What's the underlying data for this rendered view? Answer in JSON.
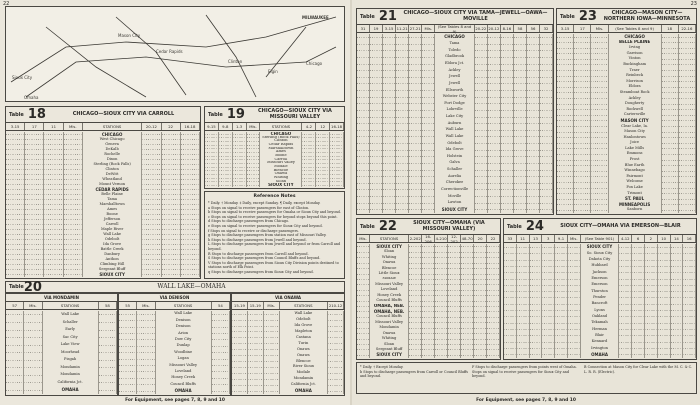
{
  "left_page": {
    "page_number": "22",
    "map": {
      "labels": [
        "MILWAUKEE",
        "Chicago",
        "Sioux City",
        "Omaha",
        "Mason City",
        "Cedar Rapids",
        "Clinton",
        "Elgin"
      ]
    },
    "footer": "For Equipment, see pages 7, 8, 9 and 10",
    "reference_notes": {
      "title": "Reference Notes",
      "items": [
        "* Daily.  † Monday.  ‡ Daily, except Sunday.  ¶ Daily, except Monday.",
        "a  Stops on signal to receive passengers for east of Clinton.",
        "b  Stops on signal to receive passengers for Omaha or Sioux City and beyond.",
        "c  Stops on signal to receive passengers for beyond stops beyond this point.",
        "d  Stops to discharge passengers from Chicago.",
        "e  Stops on signal to receive passengers for Sioux City and beyond.",
        "f  Stops on signal to receive or discharge passengers.",
        "g  Stops to discharge passengers from station east of Missouri Valley.",
        "h  Stops to discharge passengers from Jewell and beyond.",
        "L  Stops to discharge passengers from Jewell and beyond or from Carroll and beyond.",
        "R  Stops to discharge passengers from Carroll and beyond.",
        "S  Stops to discharge passengers from Council Bluffs and beyond.",
        "V  Stops to discharge passengers from Sioux City Division points destined to stations north of Elk Point.",
        "q  Stops to discharge passengers from Sioux City and beyond."
      ]
    },
    "table18": {
      "label": "Table",
      "number": "18",
      "title": "CHICAGO—SIOUX CITY VIA CARROLL",
      "columns": [
        "3-15",
        "17",
        "11",
        "Mls.",
        "STATIONS",
        "20-12",
        "22",
        "16-18"
      ],
      "stations": [
        "CHICAGO",
        "West Chicago",
        "Geneva",
        "DeKalb",
        "Rochelle",
        "Dixon",
        "Sterling (Rock Falls)",
        "Clinton",
        "DeWitt",
        "Wheatland",
        "Mount Vernon",
        "CEDAR RAPIDS",
        "Belle Plaine",
        "Tama",
        "Marshalltown",
        "Ames",
        "Boone",
        "Jefferson",
        "Carroll",
        "Maple River",
        "Wall Lake",
        "Odebolt",
        "Ida Grove",
        "Battle Creek",
        "Danbury",
        "Anthon",
        "Climbing Hill",
        "Sergeant Bluff",
        "SIOUX CITY"
      ]
    },
    "table19": {
      "label": "Table",
      "number": "19",
      "title": "CHICAGO—SIOUX CITY VIA MISSOURI VALLEY",
      "columns": [
        "9-15",
        "9-8",
        "1-3",
        "Mls.",
        "STATIONS",
        "4-2",
        "12",
        "16-18"
      ],
      "stations": [
        "CHICAGO",
        "Sterling (Rock Falls)",
        "Clinton",
        "Cedar Rapids",
        "Marshalltown",
        "Ames",
        "Boone",
        "Carroll",
        "Missouri Valley",
        "Modale",
        "Blencoe",
        "Onawa",
        "Whiting",
        "Sloan",
        "SIOUX CITY"
      ]
    },
    "table20": {
      "label": "Table",
      "number": "20",
      "title": "WALL LAKE—OMAHA",
      "sections": [
        {
          "title": "VIA MONDAMIN",
          "columns": [
            "57",
            "Mls.",
            "STATIONS",
            "58"
          ],
          "stations": [
            "Wall Lake",
            "Schaller",
            "Early",
            "Sac City",
            "Lake View",
            "Moorhead",
            "Pisgah",
            "Mondamin",
            "Mondamin",
            "California Jct.",
            "OMAHA"
          ]
        },
        {
          "title": "VIA DENISON",
          "columns": [
            "55",
            "Mls.",
            "STATIONS",
            "54"
          ],
          "stations": [
            "Wall Lake",
            "Denison",
            "Denison",
            "Arion",
            "Dow City",
            "Dunlap",
            "Woodbine",
            "Logan",
            "Missouri Valley",
            "Loveland",
            "Honey Creek",
            "Council Bluffs",
            "OMAHA"
          ]
        },
        {
          "title": "VIA ONAWA",
          "columns": [
            "15-19",
            "15-19",
            "Mls.",
            "STATIONS",
            "210-12"
          ],
          "stations": [
            "Wall Lake",
            "Odebolt",
            "Ida Grove",
            "Mapleton",
            "Castana",
            "Turin",
            "Onawa",
            "Onawa",
            "Blencoe",
            "River Sioux",
            "Modale",
            "Mondamin",
            "California Jct.",
            "OMAHA"
          ]
        }
      ]
    }
  },
  "right_page": {
    "page_number": "23",
    "footer": "For Equipment, see pages 7, 8, 9 and 10",
    "table21": {
      "label": "Table",
      "number": "21",
      "title": "CHICAGO—SIOUX CITY VIA TAMA—JEWELL—OAWA—MOVILLE",
      "columns": [
        "31",
        "19",
        "3-15",
        "11-21",
        "27-21",
        "Mls.",
        "(See Tables 8 and 9)",
        "20-22",
        "20-12",
        "8-16",
        "58",
        "56",
        "32"
      ],
      "stations": [
        "CHICAGO",
        "Tama",
        "Toledo",
        "Gladbrook",
        "Eldora Jct.",
        "Ackley",
        "Jewell",
        "Jewell",
        "Ellsworth",
        "Webster City",
        "Fort Dodge",
        "Lohrville",
        "Lake City",
        "Auburn",
        "Wall Lake",
        "Wall Lake",
        "Odebolt",
        "Ida Grove",
        "Holstein",
        "Galva",
        "Schaller",
        "Aurelia",
        "Cherokee",
        "Correctionville",
        "Moville",
        "Lawton",
        "SIOUX CITY"
      ]
    },
    "table22": {
      "label": "Table",
      "number": "22",
      "title": "SIOUX CITY—OMAHA (VIA MISSOURI VALLEY)",
      "columns": [
        "Mls.",
        "STATIONS",
        "2-202",
        "16-206",
        "4-210",
        "12-202",
        "48-70",
        "20",
        "22"
      ],
      "stations": [
        "SIOUX CITY",
        "Sloan",
        "Whiting",
        "Onawa",
        "Blencoe",
        "Little Sioux",
        "Modale",
        "Missouri Valley",
        "Loveland",
        "Honey Creek",
        "Council Bluffs",
        "OMAHA, NEB.",
        "OMAHA, NEB.",
        "Council Bluffs",
        "Missouri Valley",
        "Mondamin",
        "Onawa",
        "Whiting",
        "Sloan",
        "Sergeant Bluff",
        "SIOUX CITY"
      ]
    },
    "table23": {
      "label": "Table",
      "number": "23",
      "title": "CHICAGO—MASON CITY—NORTHERN IOWA—MINNESOTA",
      "columns": [
        "3-15",
        "17",
        "Mls.",
        "(See Tables 8 and 9)",
        "18",
        "22-16"
      ],
      "stations": [
        "CHICAGO",
        "BELLE PLAINE",
        "Irving",
        "Garrison",
        "Vinton",
        "Buckingham",
        "Traer",
        "Reinbeck",
        "Morrison",
        "Eldora",
        "Steamboat Rock",
        "Ackley",
        "Dougherty",
        "Rockwell",
        "Cartersville",
        "MASON CITY",
        "Clear Lake, Ia.",
        "Mason City",
        "Hanlontown",
        "Joice",
        "Lake Mills",
        "Emmons",
        "Frost",
        "Blue Earth",
        "Winnebago",
        "Fairmont",
        "Welcome",
        "Fox Lake",
        "Trimont",
        "ST. PAUL",
        "MINNEAPOLIS",
        "Sanborn"
      ]
    },
    "table24": {
      "label": "Table",
      "number": "24",
      "title": "SIOUX CITY—OMAHA VIA EMERSON—BLAIR",
      "columns": [
        "33",
        "11",
        "13",
        "3",
        "9-1",
        "Mls.",
        "(See Table 901)",
        "4-12",
        "6",
        "2",
        "10",
        "14",
        "16"
      ],
      "stations": [
        "SIOUX CITY",
        "So. Sioux City",
        "Dakota City",
        "Hubbard",
        "Jackson",
        "Emerson",
        "Emerson",
        "Thurston",
        "Pender",
        "Bancroft",
        "Lyons",
        "Oakland",
        "Tekamah",
        "Herman",
        "Blair",
        "Kennard",
        "Irvington",
        "OMAHA"
      ]
    },
    "bottom_notes": [
      "* Daily.  † Except Monday.",
      "b Stops to discharge passengers from Carroll or Council Bluffs and beyond.",
      "F Stops to discharge passengers from points west of Omaha.",
      "Stops on signal to receive passengers for Sioux City and beyond.",
      "B Connection at Mason City for Clear Lake with the M. C. & C. L. R. R. (Electric)."
    ]
  }
}
